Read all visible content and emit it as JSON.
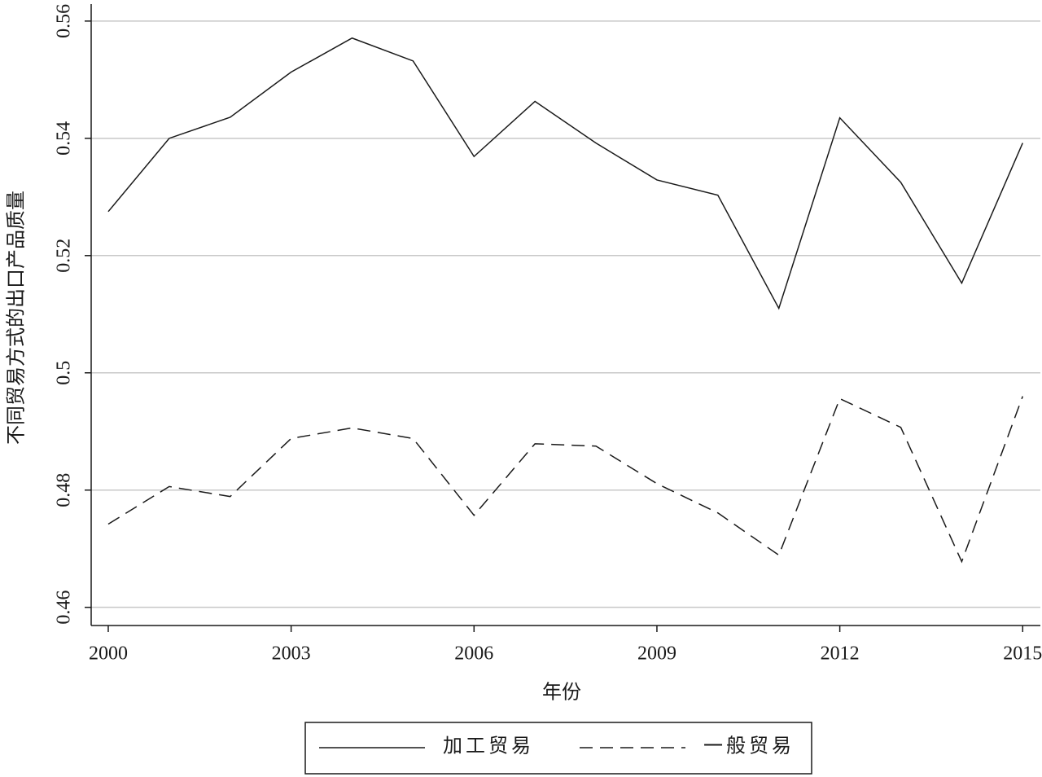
{
  "chart_data": {
    "type": "line",
    "x_label": "年份",
    "y_label": "不同贸易方式的出口产品质量",
    "x": [
      2000,
      2001,
      2002,
      2003,
      2004,
      2005,
      2006,
      2007,
      2008,
      2009,
      2010,
      2011,
      2012,
      2013,
      2014,
      2015
    ],
    "series": [
      {
        "name": "加工贸易",
        "color": "#1a1a1a",
        "style": "solid",
        "values": [
          0.5275,
          0.54,
          0.5436,
          0.5513,
          0.5571,
          0.5532,
          0.5369,
          0.5463,
          0.5392,
          0.5329,
          0.5303,
          0.511,
          0.5435,
          0.5325,
          0.5153,
          0.5392
        ]
      },
      {
        "name": "一般贸易",
        "color": "#1a1a1a",
        "style": "dashed",
        "values": [
          0.4742,
          0.4806,
          0.4789,
          0.4888,
          0.4906,
          0.4888,
          0.4757,
          0.4879,
          0.4875,
          0.4811,
          0.4761,
          0.4689,
          0.4956,
          0.4907,
          0.4678,
          0.496
        ]
      }
    ],
    "xlim": [
      1999.72,
      2015.29
    ],
    "xticks": [
      2000,
      2003,
      2006,
      2009,
      2012,
      2015
    ],
    "ylim": [
      0.4569,
      0.5629
    ],
    "yticks": [
      0.46,
      0.48,
      0.5,
      0.52,
      0.54,
      0.56
    ],
    "grid": true,
    "legend": "bottom"
  }
}
